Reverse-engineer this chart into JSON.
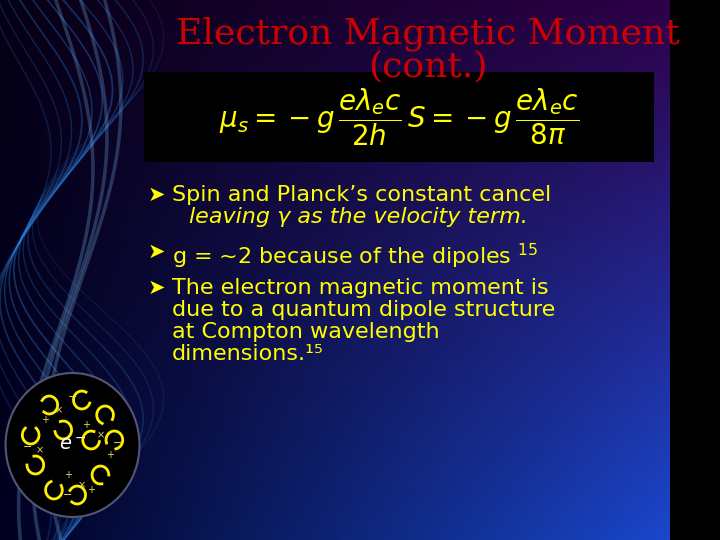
{
  "title_line1": "Electron Magnetic Moment",
  "title_line2": "(cont.)",
  "title_color": "#cc0000",
  "title_fontsize": 26,
  "equation_color": "#ffff00",
  "equation_bg": "#000000",
  "bullet_color": "#ffff00",
  "bullet_fontsize": 16,
  "bullet_symbol": "➤",
  "bullets": [
    [
      "Spin and Planck’s constant cancel",
      "leaving  γ as the velocity term."
    ],
    [
      "g = ~2 because of the dipoles¹⁵"
    ],
    [
      "The electron magnetic moment is",
      "due to a quantum dipole structure",
      "at Compton wavelength",
      "dimensions.¹⁵"
    ]
  ],
  "grad_corners": {
    "tl": [
      0.02,
      0.0,
      0.08
    ],
    "tr": [
      0.18,
      0.0,
      0.28
    ],
    "bl": [
      0.0,
      0.0,
      0.12
    ],
    "br": [
      0.1,
      0.28,
      0.8
    ]
  }
}
